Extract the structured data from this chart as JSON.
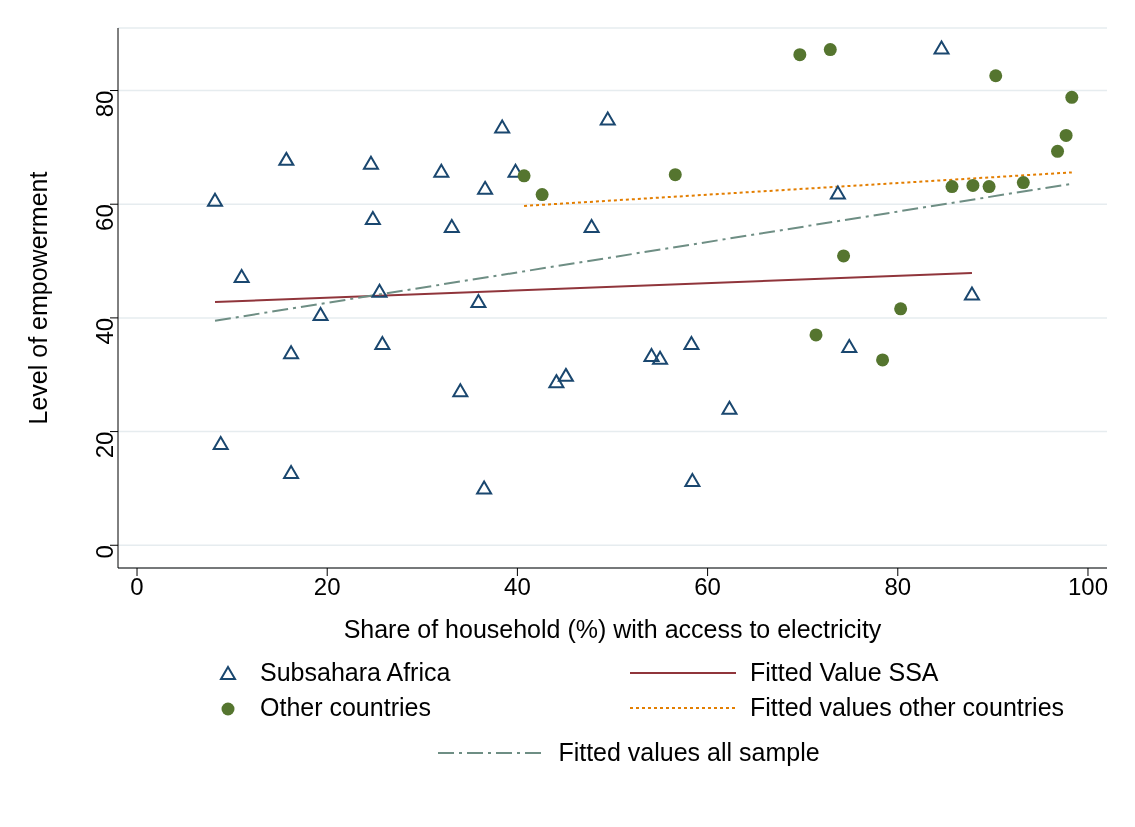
{
  "chart_data": {
    "type": "scatter",
    "xlabel": "Share of household (%) with access to electricity",
    "ylabel": "Level of empowerment",
    "xlim": [
      -2,
      102
    ],
    "xticks": [
      0,
      20,
      40,
      60,
      80,
      100
    ],
    "ylim": [
      -4,
      91
    ],
    "yticks": [
      0,
      20,
      40,
      60,
      80
    ],
    "grid": "y",
    "legend": "bottom",
    "series": [
      {
        "name": "Subsahara Africa",
        "marker": "triangle",
        "color": "#1a476f",
        "x": [
          8.2,
          8.8,
          11.0,
          15.7,
          16.2,
          16.2,
          19.3,
          24.6,
          24.8,
          25.5,
          25.8,
          32.0,
          33.1,
          34.0,
          35.9,
          36.6,
          36.5,
          38.4,
          39.8,
          44.1,
          45.1,
          47.8,
          49.5,
          54.1,
          55.0,
          58.3,
          58.4,
          62.3,
          73.7,
          74.9,
          84.6,
          87.8
        ],
        "values": [
          60.6,
          17.8,
          47.2,
          67.8,
          33.8,
          12.7,
          40.5,
          67.1,
          57.4,
          44.6,
          35.4,
          65.7,
          56.0,
          27.1,
          42.8,
          62.7,
          10.0,
          73.5,
          65.7,
          28.7,
          29.8,
          56.0,
          74.9,
          33.3,
          32.8,
          35.4,
          11.3,
          24.0,
          61.9,
          34.9,
          87.4,
          44.1
        ]
      },
      {
        "name": "Fitted Value SSA",
        "type": "line",
        "marker": "none",
        "line_style": "solid",
        "color": "#90353b",
        "x": [
          8.2,
          87.8
        ],
        "values": [
          42.8,
          47.9
        ]
      },
      {
        "name": "Other countries",
        "marker": "circle",
        "color": "#55752f",
        "x": [
          40.7,
          42.6,
          56.6,
          69.7,
          71.4,
          72.9,
          74.3,
          78.4,
          80.3,
          85.7,
          87.9,
          89.6,
          90.3,
          93.2,
          96.8,
          97.7,
          98.3
        ],
        "values": [
          65.0,
          61.7,
          65.2,
          86.3,
          37.0,
          87.2,
          50.9,
          32.6,
          41.6,
          63.1,
          63.3,
          63.1,
          82.6,
          63.8,
          69.3,
          72.1,
          78.8
        ]
      },
      {
        "name": "Fitted values other countries",
        "type": "line",
        "marker": "none",
        "line_style": "dotted",
        "color": "#e37e00",
        "x": [
          40.7,
          98.3
        ],
        "values": [
          59.7,
          65.6
        ]
      },
      {
        "name": "Fitted values all sample",
        "type": "line",
        "marker": "none",
        "line_style": "dashdot",
        "color": "#6e8e84",
        "x": [
          8.2,
          98.3
        ],
        "values": [
          39.5,
          63.6
        ]
      }
    ]
  }
}
